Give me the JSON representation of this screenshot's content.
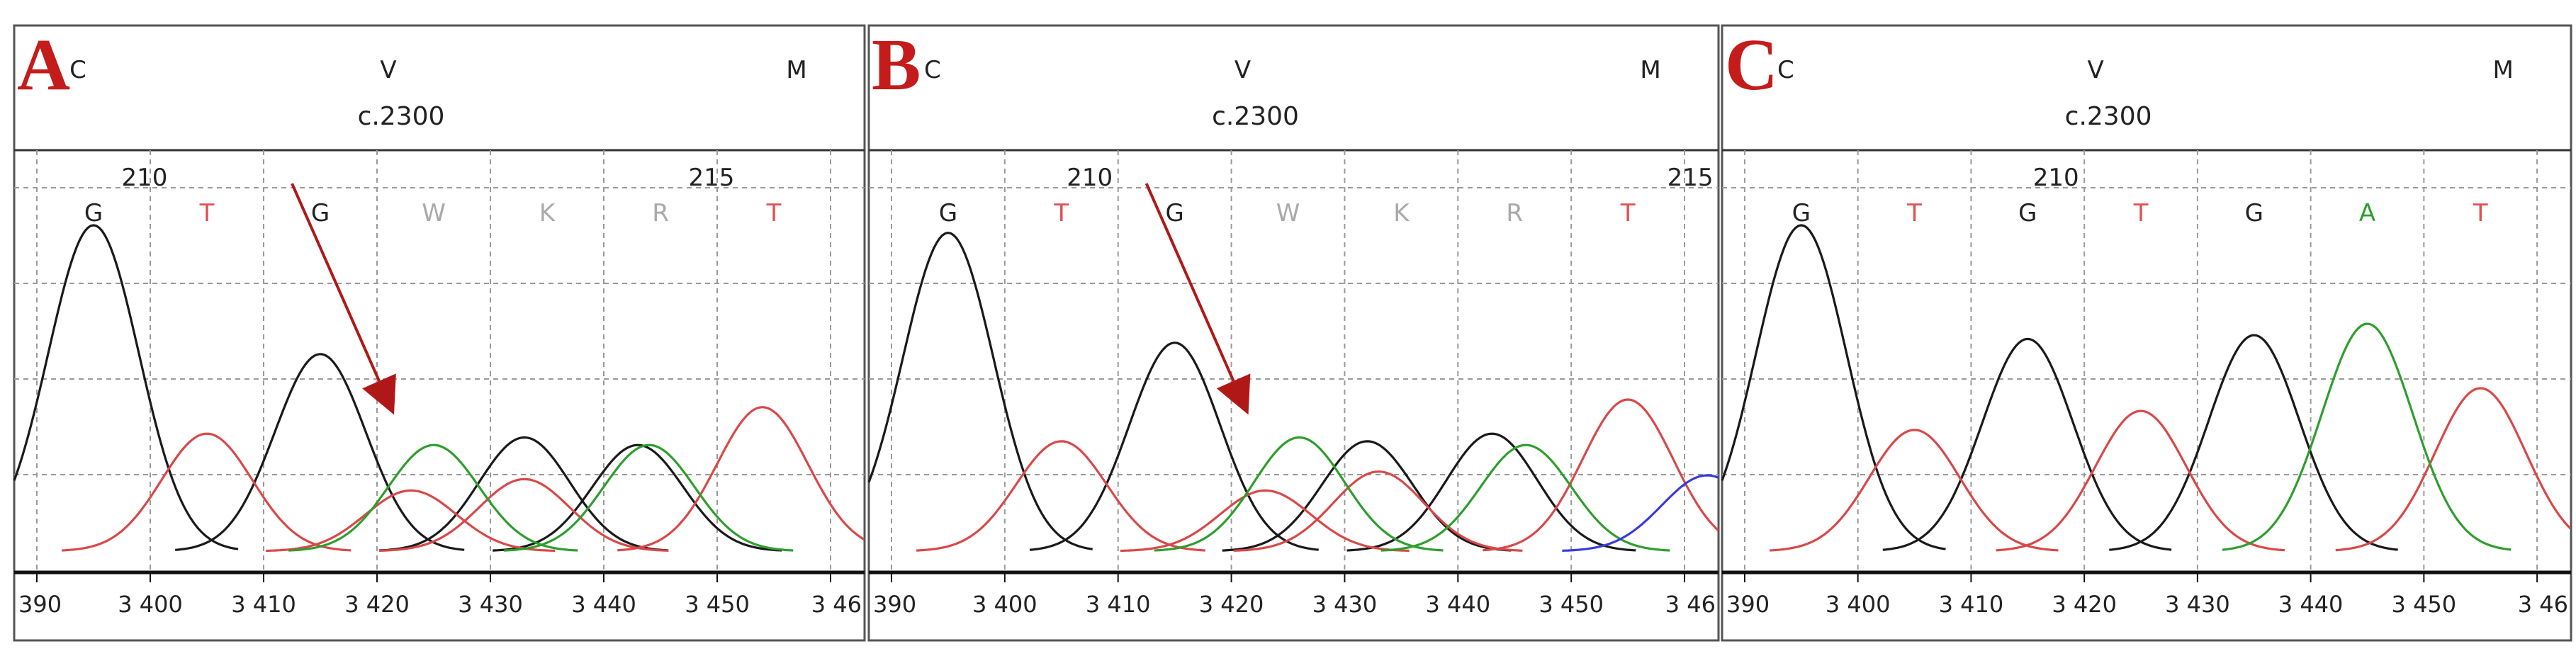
{
  "chart_data": [
    {
      "panel": "A",
      "type": "line",
      "codons": [
        "C",
        "V",
        "M"
      ],
      "position_label": "c.2300",
      "bases": [
        {
          "base": "G",
          "color": "#222222"
        },
        {
          "base": "T",
          "color": "#e05050"
        },
        {
          "base": "G",
          "color": "#222222"
        },
        {
          "base": "W",
          "color": "#aaaaaa"
        },
        {
          "base": "K",
          "color": "#aaaaaa"
        },
        {
          "base": "R",
          "color": "#aaaaaa"
        },
        {
          "base": "T",
          "color": "#e05050"
        }
      ],
      "base_numbers": [
        {
          "label": "210",
          "slot": 0.5
        },
        {
          "label": "215",
          "slot": 5.5
        }
      ],
      "x_ticks": [
        "390",
        "3 400",
        "3 410",
        "3 420",
        "3 430",
        "3 440",
        "3 450",
        "3 46"
      ],
      "series": [
        {
          "name": "G",
          "color": "#1a1a1a",
          "peaks": [
            {
              "x": 3395,
              "h": 0.86
            },
            {
              "x": 3415,
              "h": 0.52
            },
            {
              "x": 3433,
              "h": 0.3
            },
            {
              "x": 3443,
              "h": 0.28
            }
          ]
        },
        {
          "name": "T",
          "color": "#d94848",
          "peaks": [
            {
              "x": 3405,
              "h": 0.31
            },
            {
              "x": 3423,
              "h": 0.16
            },
            {
              "x": 3433,
              "h": 0.19
            },
            {
              "x": 3454,
              "h": 0.38
            }
          ]
        },
        {
          "name": "A",
          "color": "#2e9e2e",
          "peaks": [
            {
              "x": 3425,
              "h": 0.28
            },
            {
              "x": 3444,
              "h": 0.28
            }
          ]
        }
      ],
      "arrow": {
        "from": [
          3412.5,
          0.97
        ],
        "to": [
          3421.5,
          0.36
        ]
      }
    },
    {
      "panel": "B",
      "type": "line",
      "codons": [
        "C",
        "V",
        "M"
      ],
      "position_label": "c.2300",
      "bases": [
        {
          "base": "G",
          "color": "#222222"
        },
        {
          "base": "T",
          "color": "#e05050"
        },
        {
          "base": "G",
          "color": "#222222"
        },
        {
          "base": "W",
          "color": "#aaaaaa"
        },
        {
          "base": "K",
          "color": "#aaaaaa"
        },
        {
          "base": "R",
          "color": "#aaaaaa"
        },
        {
          "base": "T",
          "color": "#e05050"
        }
      ],
      "base_numbers": [
        {
          "label": "210",
          "slot": 1.3
        },
        {
          "label": "215",
          "slot": 6.6
        }
      ],
      "x_ticks": [
        "390",
        "3 400",
        "3 410",
        "3 420",
        "3 430",
        "3 440",
        "3 450",
        "3 46"
      ],
      "series": [
        {
          "name": "G",
          "color": "#1a1a1a",
          "peaks": [
            {
              "x": 3395,
              "h": 0.84
            },
            {
              "x": 3415,
              "h": 0.55
            },
            {
              "x": 3432,
              "h": 0.29
            },
            {
              "x": 3443,
              "h": 0.31
            }
          ]
        },
        {
          "name": "T",
          "color": "#d94848",
          "peaks": [
            {
              "x": 3405,
              "h": 0.29
            },
            {
              "x": 3423,
              "h": 0.16
            },
            {
              "x": 3433,
              "h": 0.21
            },
            {
              "x": 3455,
              "h": 0.4
            }
          ]
        },
        {
          "name": "A",
          "color": "#2e9e2e",
          "peaks": [
            {
              "x": 3426,
              "h": 0.3
            },
            {
              "x": 3446,
              "h": 0.28
            }
          ]
        },
        {
          "name": "C",
          "color": "#3a3ae0",
          "peaks": [
            {
              "x": 3462,
              "h": 0.2
            }
          ]
        }
      ],
      "arrow": {
        "from": [
          3412.5,
          0.97
        ],
        "to": [
          3421.5,
          0.36
        ]
      }
    },
    {
      "panel": "C",
      "type": "line",
      "codons": [
        "C",
        "V",
        "M"
      ],
      "position_label": "c.2300",
      "bases": [
        {
          "base": "G",
          "color": "#222222"
        },
        {
          "base": "T",
          "color": "#e05050"
        },
        {
          "base": "G",
          "color": "#222222"
        },
        {
          "base": "T",
          "color": "#e05050"
        },
        {
          "base": "G",
          "color": "#222222"
        },
        {
          "base": "A",
          "color": "#2e9e2e"
        },
        {
          "base": "T",
          "color": "#e05050"
        }
      ],
      "base_numbers": [
        {
          "label": "210",
          "slot": 2.3
        }
      ],
      "x_ticks": [
        "390",
        "3 400",
        "3 410",
        "3 420",
        "3 430",
        "3 440",
        "3 450",
        "3 46"
      ],
      "series": [
        {
          "name": "G",
          "color": "#1a1a1a",
          "peaks": [
            {
              "x": 3395,
              "h": 0.86
            },
            {
              "x": 3415,
              "h": 0.56
            },
            {
              "x": 3435,
              "h": 0.57
            }
          ]
        },
        {
          "name": "T",
          "color": "#d94848",
          "peaks": [
            {
              "x": 3405,
              "h": 0.32
            },
            {
              "x": 3425,
              "h": 0.37
            },
            {
              "x": 3455,
              "h": 0.43
            }
          ]
        },
        {
          "name": "A",
          "color": "#2e9e2e",
          "peaks": [
            {
              "x": 3445,
              "h": 0.6
            }
          ]
        }
      ],
      "arrow": null
    }
  ]
}
